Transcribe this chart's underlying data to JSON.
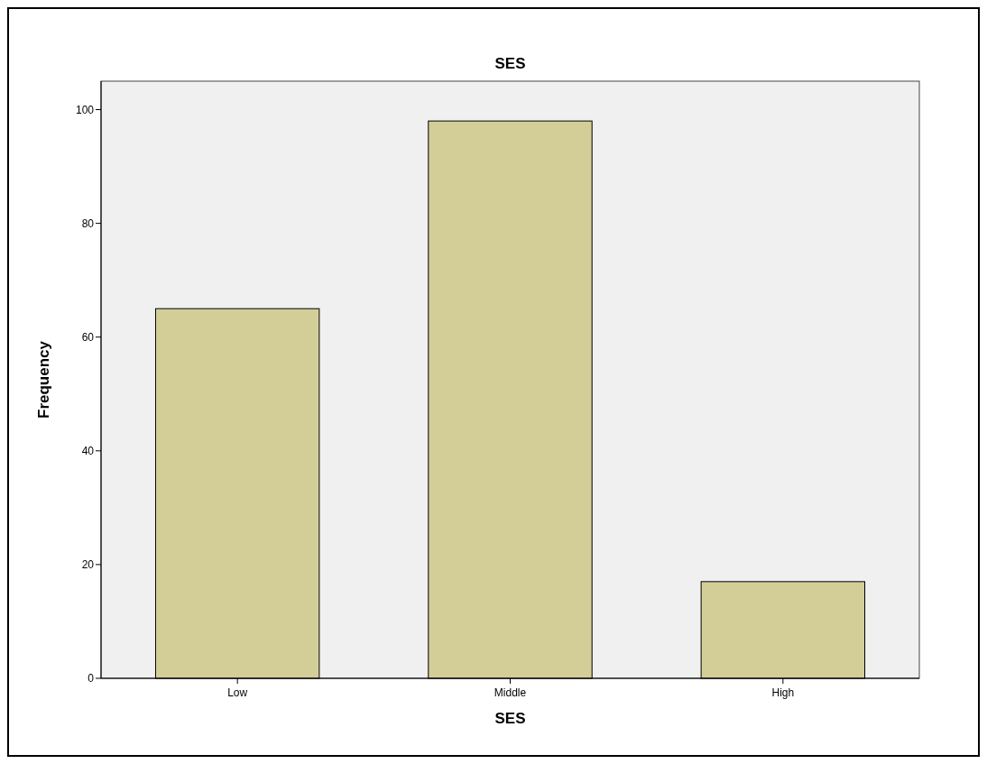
{
  "chart_data": {
    "type": "bar",
    "title": "SES",
    "xlabel": "SES",
    "ylabel": "Frequency",
    "categories": [
      "Low",
      "Middle",
      "High"
    ],
    "values": [
      65,
      98,
      17
    ],
    "color": "#d3ce98",
    "ylim": [
      0,
      105
    ],
    "yticks": [
      0,
      20,
      40,
      60,
      80,
      100
    ],
    "grid": false
  }
}
